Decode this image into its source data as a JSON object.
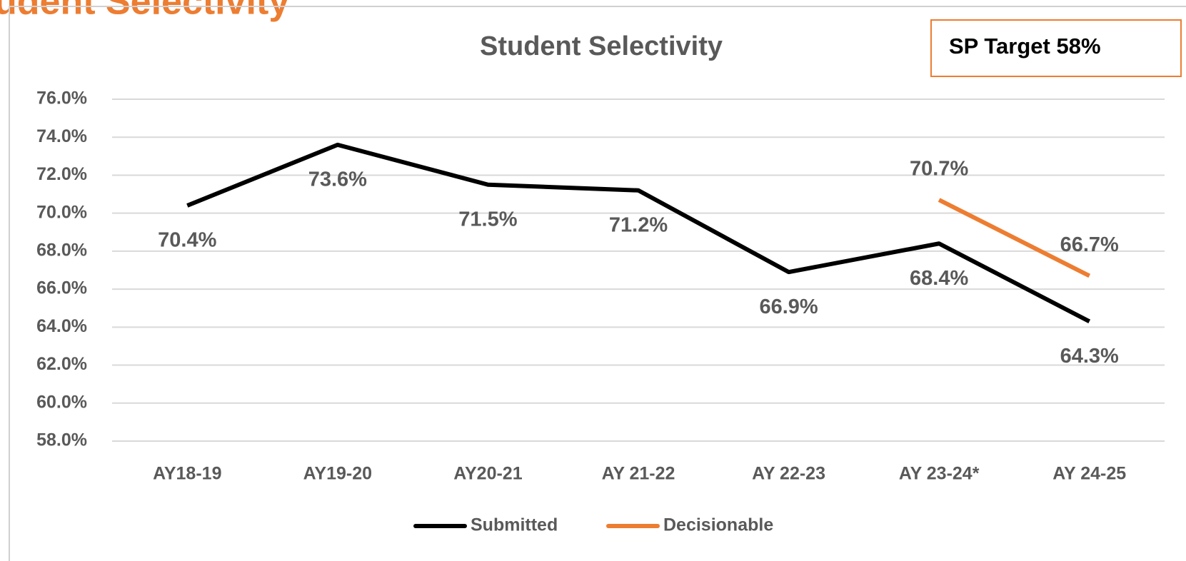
{
  "heading": "Student Selectivity",
  "chart_data": {
    "type": "line",
    "title": "Student Selectivity",
    "annotation": "SP Target 58%",
    "categories": [
      "AY18-19",
      "AY19-20",
      "AY20-21",
      "AY 21-22",
      "AY 22-23",
      "AY 23-24*",
      "AY 24-25"
    ],
    "series": [
      {
        "name": "Submitted",
        "color": "#000000",
        "values": [
          70.4,
          73.6,
          71.5,
          71.2,
          66.9,
          68.4,
          64.3
        ],
        "value_labels": [
          "70.4%",
          "73.6%",
          "71.5%",
          "71.2%",
          "66.9%",
          "68.4%",
          "64.3%"
        ]
      },
      {
        "name": "Decisionable",
        "color": "#ed7d31",
        "values": [
          null,
          null,
          null,
          null,
          null,
          70.7,
          66.7
        ],
        "value_labels": [
          null,
          null,
          null,
          null,
          null,
          "70.7%",
          "66.7%"
        ]
      }
    ],
    "ylim": [
      58,
      76
    ],
    "yticks": [
      {
        "value": 58,
        "label": "58.0%"
      },
      {
        "value": 60,
        "label": "60.0%"
      },
      {
        "value": 62,
        "label": "62.0%"
      },
      {
        "value": 64,
        "label": "64.0%"
      },
      {
        "value": 66,
        "label": "66.0%"
      },
      {
        "value": 68,
        "label": "68.0%"
      },
      {
        "value": 70,
        "label": "70.0%"
      },
      {
        "value": 72,
        "label": "72.0%"
      },
      {
        "value": 74,
        "label": "74.0%"
      },
      {
        "value": 76,
        "label": "76.0%"
      }
    ],
    "grid": true,
    "legend": "bottom"
  }
}
